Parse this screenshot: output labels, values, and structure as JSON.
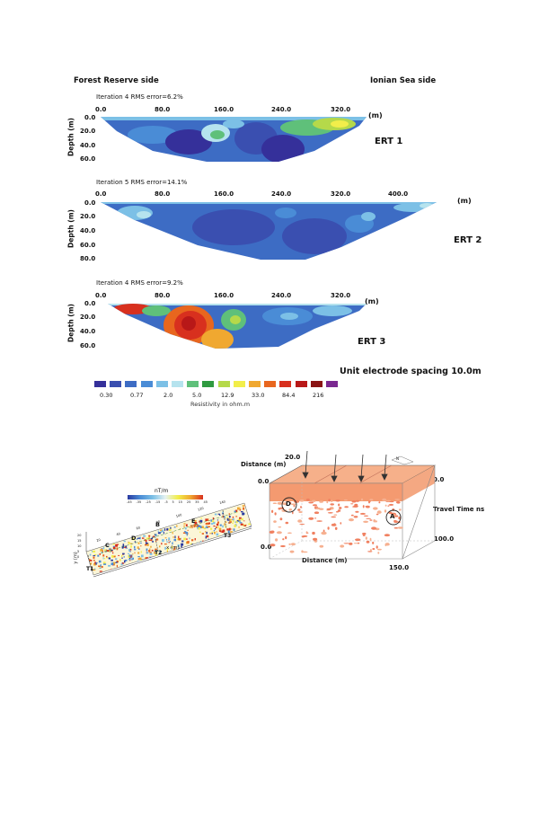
{
  "ert": {
    "left_side": "Forest Reserve side",
    "right_side": "Ionian Sea side",
    "unit_m": "(m)",
    "depth_label": "Depth (m)",
    "panels": [
      {
        "iteration": "Iteration 4 RMS error=6.2%",
        "x_ticks": [
          "0.0",
          "80.0",
          "160.0",
          "240.0",
          "320.0"
        ],
        "y_ticks": [
          "0.0",
          "20.0",
          "40.0",
          "60.0"
        ],
        "name": "ERT 1"
      },
      {
        "iteration": "Iteration 5 RMS error=14.1%",
        "x_ticks": [
          "0.0",
          "80.0",
          "160.0",
          "240.0",
          "320.0",
          "400.0"
        ],
        "y_ticks": [
          "0.0",
          "20.0",
          "40.0",
          "60.0",
          "80.0"
        ],
        "name": "ERT 2"
      },
      {
        "iteration": "Iteration 4 RMS error=9.2%",
        "x_ticks": [
          "0.0",
          "80.0",
          "160.0",
          "240.0",
          "320.0"
        ],
        "y_ticks": [
          "0.0",
          "20.0",
          "40.0",
          "60.0"
        ],
        "name": "ERT 3"
      }
    ],
    "electrode_spacing": "Unit electrode spacing 10.0m",
    "legend_values": [
      "0.30",
      "0.77",
      "2.0",
      "5.0",
      "12.9",
      "33.0",
      "84.4",
      "216"
    ],
    "legend_caption": "Resistivity in ohm.m",
    "legend_colors": [
      "#35309a",
      "#3a4fb0",
      "#3d6cc4",
      "#4a8cd6",
      "#7cc0e6",
      "#b6e3ee",
      "#5fc07a",
      "#2f9a40",
      "#b5d94a",
      "#f2ee4a",
      "#f0a830",
      "#e8661e",
      "#d8301e",
      "#b81818",
      "#8a1414",
      "#7a2890"
    ]
  },
  "mag": {
    "unit": "nT/m",
    "scale_values": [
      "-45",
      "-35",
      "-25",
      "-15",
      "-5",
      "5",
      "15",
      "25",
      "35",
      "45"
    ],
    "anomalies": [
      "C",
      "D",
      "B",
      "E"
    ],
    "transects": [
      "T1",
      "T2",
      "T3"
    ],
    "x_axis": "x (m)",
    "x_ticks": [
      "20",
      "40",
      "60",
      "80",
      "100",
      "120",
      "140"
    ],
    "y_axis": "y (m)",
    "y_ticks": [
      "0",
      "5",
      "10",
      "15",
      "20"
    ]
  },
  "gpr": {
    "distance_top_label": "Distance (m)",
    "distance_top_value": "20.0",
    "origin_left": "0.0",
    "origin_right": "0.0",
    "travel_time": "Travel Time ns",
    "tt_value": "100.0",
    "bottom_origin": "0.0",
    "distance_bottom": "Distance (m)",
    "distance_end": "150.0",
    "marks": [
      "D",
      "A"
    ],
    "compass": "N"
  }
}
